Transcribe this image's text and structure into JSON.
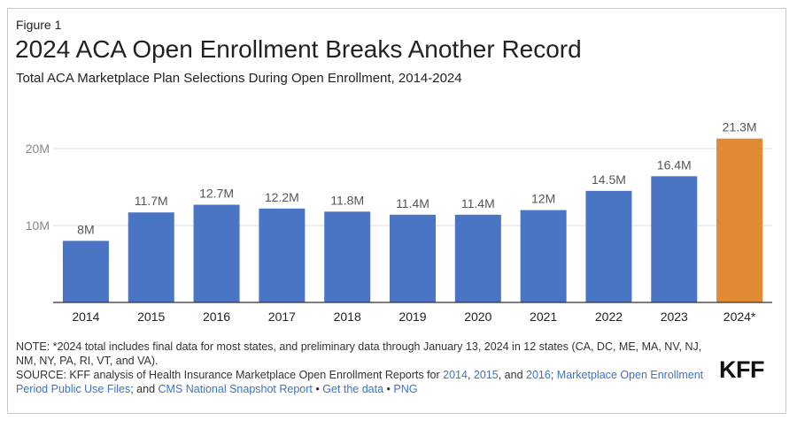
{
  "figure": {
    "label": "Figure 1",
    "title": "2024 ACA Open Enrollment Breaks Another Record",
    "subtitle": "Total ACA Marketplace Plan Selections During Open Enrollment, 2014-2024"
  },
  "chart_data": {
    "type": "bar",
    "title": "2024 ACA Open Enrollment Breaks Another Record",
    "subtitle": "Total ACA Marketplace Plan Selections During Open Enrollment, 2014-2024",
    "categories": [
      "2014",
      "2015",
      "2016",
      "2017",
      "2018",
      "2019",
      "2020",
      "2021",
      "2022",
      "2023",
      "2024*"
    ],
    "values": [
      8.0,
      11.7,
      12.7,
      12.2,
      11.8,
      11.4,
      11.4,
      12.0,
      14.5,
      16.4,
      21.3
    ],
    "data_labels": [
      "8M",
      "11.7M",
      "12.7M",
      "12.2M",
      "11.8M",
      "11.4M",
      "11.4M",
      "12M",
      "14.5M",
      "16.4M",
      "21.3M"
    ],
    "unit": "M",
    "yticks": [
      {
        "value": 10,
        "label": "10M"
      },
      {
        "value": 20,
        "label": "20M"
      }
    ],
    "ylim": [
      0,
      24
    ],
    "grid": "horizontal",
    "colors": {
      "bar": "#4a74c4",
      "highlight": "#e08b34",
      "grid": "#dddddd",
      "axis": "#333333",
      "text": "#555555"
    },
    "highlight_index": 10
  },
  "notes": {
    "note": "NOTE: *2024 total includes final data for most states, and preliminary data through January 13, 2024 in 12 states (CA, DC, ME, MA, NV, NJ, NM, NY, PA, RI, VT, and VA).",
    "source_prefix": "SOURCE: KFF analysis of Health Insurance Marketplace Open Enrollment Reports for ",
    "link_2014": "2014",
    "sep1": ", ",
    "link_2015": "2015",
    "sep2": ", and ",
    "link_2016": "2016",
    "sep3": "; ",
    "link_puf": "Marketplace Open Enrollment Period Public Use Files",
    "sep4": "; and ",
    "link_cms": "CMS National Snapshot Report",
    "sep5": " • ",
    "link_data": "Get the data",
    "sep6": " • ",
    "link_png": "PNG"
  },
  "brand": {
    "logo_text": "KFF"
  }
}
